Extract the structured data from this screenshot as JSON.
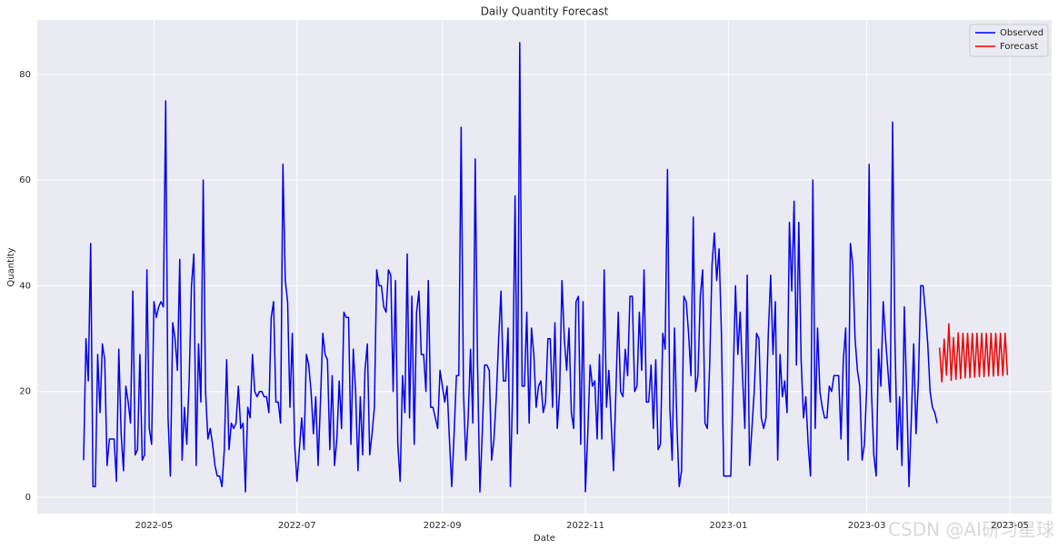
{
  "chart_data": {
    "type": "line",
    "title": "Daily Quantity Forecast",
    "xlabel": "Date",
    "ylabel": "Quantity",
    "watermark": "CSDN @AI研习星球",
    "categories": [
      null,
      null,
      null,
      null,
      null,
      null,
      null,
      null,
      null,
      null,
      null,
      null,
      null,
      null,
      null,
      null,
      null,
      null,
      null,
      null,
      null,
      null,
      null,
      null,
      null,
      null,
      null,
      null,
      null,
      null,
      "2022-05",
      null,
      null,
      null,
      null,
      null,
      null,
      null,
      null,
      null,
      null,
      null,
      null,
      null,
      null,
      null,
      null,
      null,
      null,
      null,
      null,
      null,
      null,
      null,
      null,
      null,
      null,
      null,
      null,
      null,
      null,
      null,
      null,
      null,
      null,
      null,
      null,
      null,
      null,
      null,
      null,
      null,
      null,
      null,
      null,
      null,
      null,
      null,
      null,
      null,
      null,
      null,
      null,
      null,
      null,
      null,
      null,
      null,
      null,
      null,
      null,
      "2022-07",
      null,
      null,
      null,
      null,
      null,
      null,
      null,
      null,
      null,
      null,
      null,
      null,
      null,
      null,
      null,
      null,
      null,
      null,
      null,
      null,
      null,
      null,
      null,
      null,
      null,
      null,
      null,
      null,
      null,
      null,
      null,
      null,
      null,
      null,
      null,
      null,
      null,
      null,
      null,
      null,
      null,
      null,
      null,
      null,
      null,
      null,
      null,
      null,
      null,
      null,
      null,
      null,
      null,
      null,
      null,
      null,
      null,
      null,
      null,
      null,
      null,
      "2022-09",
      null,
      null,
      null,
      null,
      null,
      null,
      null,
      null,
      null,
      null,
      null,
      null,
      null,
      null,
      null,
      null,
      null,
      null,
      null,
      null,
      null,
      null,
      null,
      null,
      null,
      null,
      null,
      null,
      null,
      null,
      null,
      null,
      null,
      null,
      null,
      null,
      null,
      null,
      null,
      null,
      null,
      null,
      null,
      null,
      null,
      null,
      null,
      null,
      null,
      null,
      null,
      null,
      null,
      null,
      null,
      null,
      null,
      null,
      null,
      null,
      "2022-11",
      null,
      null,
      null,
      null,
      null,
      null,
      null,
      null,
      null,
      null,
      null,
      null,
      null,
      null,
      null,
      null,
      null,
      null,
      null,
      null,
      null,
      null,
      null,
      null,
      null,
      null,
      null,
      null,
      null,
      null,
      null,
      null,
      null,
      null,
      null,
      null,
      null,
      null,
      null,
      null,
      null,
      null,
      null,
      null,
      null,
      null,
      null,
      null,
      null,
      null,
      null,
      null,
      null,
      null,
      null,
      null,
      null,
      null,
      null,
      null,
      "2023-01",
      null,
      null,
      null,
      null,
      null,
      null,
      null,
      null,
      null,
      null,
      null,
      null,
      null,
      null,
      null,
      null,
      null,
      null,
      null,
      null,
      null,
      null,
      null,
      null,
      null,
      null,
      null,
      null,
      null,
      null,
      null,
      null,
      null,
      null,
      null,
      null,
      null,
      null,
      null,
      null,
      null,
      null,
      null,
      null,
      null,
      null,
      null,
      null,
      null,
      null,
      null,
      null,
      null,
      null,
      null,
      null,
      null,
      null,
      "2023-03",
      null,
      null,
      null,
      null,
      null,
      null,
      null,
      null,
      null,
      null,
      null,
      null,
      null,
      null,
      null,
      null,
      null,
      null,
      null,
      null,
      null,
      null,
      null,
      null,
      null,
      null,
      null,
      null,
      null,
      null,
      null,
      null,
      null,
      null,
      null,
      null,
      null,
      null,
      null,
      null,
      null,
      null,
      null,
      null,
      null,
      null,
      null,
      null,
      null,
      null,
      null,
      null,
      null,
      null,
      null,
      null,
      null,
      null,
      null,
      null,
      "2023-05"
    ],
    "series": [
      {
        "name": "Observed",
        "color": "#0000ee",
        "values": [
          7,
          30,
          22,
          48,
          2,
          2,
          27,
          16,
          29,
          26,
          6,
          11,
          11,
          11,
          3,
          28,
          12,
          5,
          21,
          18,
          14,
          39,
          8,
          9,
          27,
          7,
          8,
          43,
          13,
          10,
          37,
          34,
          36,
          37,
          36,
          75,
          15,
          4,
          33,
          30,
          24,
          45,
          7,
          17,
          10,
          22,
          40,
          46,
          6,
          29,
          18,
          60,
          20,
          11,
          13,
          10,
          6,
          4,
          4,
          2,
          9,
          26,
          9,
          14,
          13,
          14,
          21,
          13,
          14,
          1,
          17,
          15,
          27,
          20,
          19,
          20,
          20,
          19,
          19,
          16,
          34,
          37,
          18,
          18,
          14,
          63,
          41,
          37,
          17,
          31,
          10,
          3,
          9,
          15,
          9,
          27,
          25,
          20,
          12,
          19,
          6,
          18,
          31,
          27,
          26,
          9,
          23,
          6,
          11,
          22,
          13,
          35,
          34,
          34,
          10,
          28,
          20,
          5,
          19,
          8,
          24,
          29,
          8,
          12,
          17,
          43,
          40,
          40,
          36,
          35,
          43,
          42,
          20,
          41,
          10,
          3,
          23,
          16,
          46,
          15,
          38,
          10,
          35,
          39,
          27,
          27,
          20,
          41,
          17,
          17,
          15,
          13,
          24,
          21,
          18,
          21,
          11,
          2,
          12,
          23,
          23,
          70,
          20,
          7,
          15,
          28,
          14,
          64,
          25,
          1,
          12,
          25,
          25,
          24,
          7,
          11,
          19,
          30,
          39,
          22,
          22,
          32,
          2,
          21,
          57,
          12,
          86,
          21,
          21,
          35,
          14,
          32,
          27,
          17,
          21,
          22,
          16,
          18,
          30,
          30,
          17,
          33,
          13,
          20,
          41,
          30,
          24,
          32,
          16,
          13,
          37,
          38,
          10,
          37,
          1,
          12,
          25,
          21,
          22,
          11,
          27,
          11,
          43,
          17,
          24,
          14,
          5,
          20,
          35,
          20,
          19,
          28,
          23,
          38,
          38,
          20,
          21,
          35,
          24,
          43,
          18,
          18,
          25,
          13,
          26,
          9,
          10,
          31,
          28,
          62,
          17,
          7,
          32,
          14,
          2,
          5,
          38,
          37,
          31,
          23,
          53,
          20,
          23,
          38,
          43,
          14,
          13,
          25,
          44,
          50,
          41,
          47,
          31,
          4,
          4,
          4,
          4,
          22,
          40,
          27,
          35,
          23,
          13,
          42,
          6,
          13,
          20,
          31,
          30,
          15,
          13,
          15,
          31,
          42,
          27,
          37,
          7,
          27,
          19,
          22,
          16,
          52,
          39,
          56,
          25,
          52,
          26,
          15,
          19,
          10,
          4,
          60,
          13,
          32,
          20,
          17,
          15,
          15,
          21,
          20,
          23,
          23,
          23,
          11,
          26,
          32,
          7,
          48,
          44,
          30,
          24,
          21,
          7,
          10,
          21,
          63,
          20,
          8,
          4,
          28,
          21,
          37,
          30,
          24,
          18,
          71,
          30,
          9,
          19,
          6,
          36,
          20,
          2,
          15,
          29,
          12,
          22,
          40,
          40,
          35,
          29,
          20,
          17,
          16,
          14,
          null,
          null,
          null,
          null,
          null,
          null,
          null,
          null,
          null,
          null,
          null,
          null,
          null,
          null,
          null,
          null,
          null,
          null,
          null,
          null,
          null,
          null,
          null,
          null,
          null,
          null,
          null,
          null,
          null,
          null,
          null
        ]
      },
      {
        "name": "Forecast",
        "color": "#ee0000",
        "values": [
          null,
          null,
          null,
          null,
          null,
          null,
          null,
          null,
          null,
          null,
          null,
          null,
          null,
          null,
          null,
          null,
          null,
          null,
          null,
          null,
          null,
          null,
          null,
          null,
          null,
          null,
          null,
          null,
          null,
          null,
          null,
          null,
          null,
          null,
          null,
          null,
          null,
          null,
          null,
          null,
          null,
          null,
          null,
          null,
          null,
          null,
          null,
          null,
          null,
          null,
          null,
          null,
          null,
          null,
          null,
          null,
          null,
          null,
          null,
          null,
          null,
          null,
          null,
          null,
          null,
          null,
          null,
          null,
          null,
          null,
          null,
          null,
          null,
          null,
          null,
          null,
          null,
          null,
          null,
          null,
          null,
          null,
          null,
          null,
          null,
          null,
          null,
          null,
          null,
          null,
          null,
          null,
          null,
          null,
          null,
          null,
          null,
          null,
          null,
          null,
          null,
          null,
          null,
          null,
          null,
          null,
          null,
          null,
          null,
          null,
          null,
          null,
          null,
          null,
          null,
          null,
          null,
          null,
          null,
          null,
          null,
          null,
          null,
          null,
          null,
          null,
          null,
          null,
          null,
          null,
          null,
          null,
          null,
          null,
          null,
          null,
          null,
          null,
          null,
          null,
          null,
          null,
          null,
          null,
          null,
          null,
          null,
          null,
          null,
          null,
          null,
          null,
          null,
          null,
          null,
          null,
          null,
          null,
          null,
          null,
          null,
          null,
          null,
          null,
          null,
          null,
          null,
          null,
          null,
          null,
          null,
          null,
          null,
          null,
          null,
          null,
          null,
          null,
          null,
          null,
          null,
          null,
          null,
          null,
          null,
          null,
          null,
          null,
          null,
          null,
          null,
          null,
          null,
          null,
          null,
          null,
          null,
          null,
          null,
          null,
          null,
          null,
          null,
          null,
          null,
          null,
          null,
          null,
          null,
          null,
          null,
          null,
          null,
          null,
          null,
          null,
          null,
          null,
          null,
          null,
          null,
          null,
          null,
          null,
          null,
          null,
          null,
          null,
          null,
          null,
          null,
          null,
          null,
          null,
          null,
          null,
          null,
          null,
          null,
          null,
          null,
          null,
          null,
          null,
          null,
          null,
          null,
          null,
          null,
          null,
          null,
          null,
          null,
          null,
          null,
          null,
          null,
          null,
          null,
          null,
          null,
          null,
          null,
          null,
          null,
          null,
          null,
          null,
          null,
          null,
          null,
          null,
          null,
          null,
          null,
          null,
          null,
          null,
          null,
          null,
          null,
          null,
          null,
          null,
          null,
          null,
          null,
          null,
          null,
          null,
          null,
          null,
          null,
          null,
          null,
          null,
          null,
          null,
          null,
          null,
          null,
          null,
          null,
          null,
          null,
          null,
          null,
          null,
          null,
          null,
          null,
          null,
          null,
          null,
          null,
          null,
          null,
          null,
          null,
          null,
          null,
          null,
          null,
          null,
          null,
          null,
          null,
          null,
          null,
          null,
          null,
          null,
          null,
          null,
          null,
          null,
          null,
          null,
          null,
          null,
          null,
          null,
          null,
          null,
          null,
          null,
          null,
          null,
          null,
          null,
          null,
          null,
          null,
          null,
          null,
          null,
          null,
          null,
          null,
          null,
          null,
          null,
          null,
          null,
          null,
          28.3,
          21.8,
          29.9,
          23.1,
          32.8,
          22.1,
          30.2,
          22.3,
          31.1,
          22.4,
          31.0,
          22.6,
          31.0,
          22.6,
          31.0,
          22.7,
          31.0,
          22.8,
          31.0,
          22.8,
          31.0,
          22.9,
          31.0,
          22.9,
          31.0,
          23.0,
          31.0,
          23.0,
          31.0,
          23.1,
          null
        ]
      }
    ],
    "ylim": [
      -3.1,
      90.3
    ],
    "yticks": [
      0,
      20,
      40,
      60,
      80
    ],
    "grid": true,
    "legend": "upper right"
  }
}
